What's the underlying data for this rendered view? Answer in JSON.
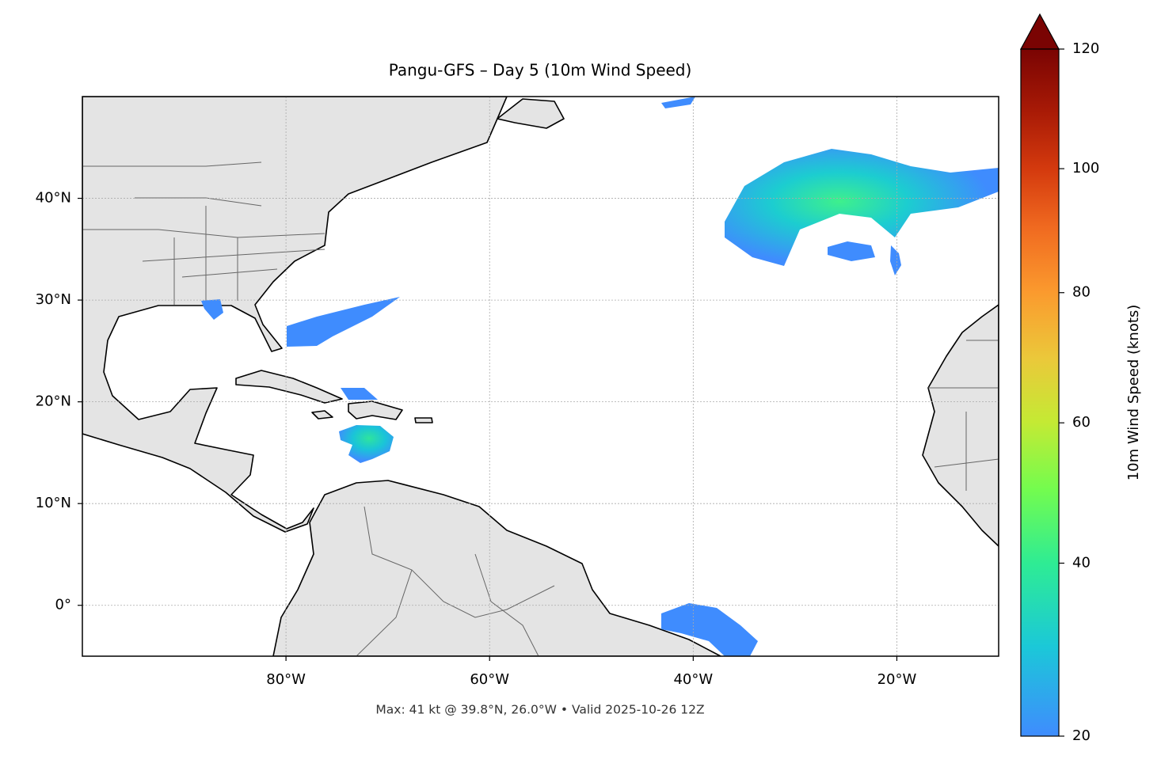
{
  "map": {
    "title": "Pangu-GFS – Day 5 (10m Wind Speed)",
    "footer": "Max: 41 kt @ 39.8°N, 26.0°W • Valid 2025-10-26 12Z",
    "lon_range": [
      -100,
      -10
    ],
    "lat_range": [
      -5,
      50
    ],
    "lon_ticks": [
      {
        "value": -80,
        "label": "80°W"
      },
      {
        "value": -60,
        "label": "60°W"
      },
      {
        "value": -40,
        "label": "40°W"
      },
      {
        "value": -20,
        "label": "20°W"
      }
    ],
    "lat_ticks": [
      {
        "value": 40,
        "label": "40°N"
      },
      {
        "value": 30,
        "label": "30°N"
      },
      {
        "value": 20,
        "label": "20°N"
      },
      {
        "value": 10,
        "label": "10°N"
      },
      {
        "value": 0,
        "label": "0°"
      }
    ],
    "grid": true,
    "colorbar": {
      "label": "10m Wind Speed (knots)",
      "ticks": [
        20,
        40,
        60,
        80,
        100,
        120
      ],
      "extend": "max"
    }
  }
}
